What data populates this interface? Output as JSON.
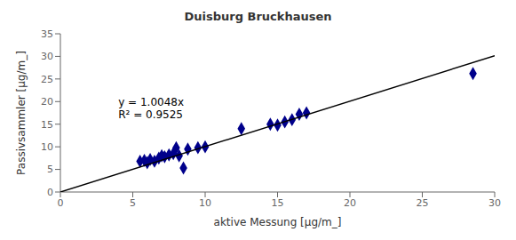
{
  "chart_data": {
    "type": "scatter",
    "title": "Duisburg Bruckhausen",
    "x_label": "aktive Messung [µg/m_]",
    "y_label": "Passivsammler  [µg/m_]",
    "xlim": [
      0,
      30
    ],
    "ylim": [
      0,
      35
    ],
    "xticks": [
      0,
      5,
      10,
      15,
      20,
      25,
      30
    ],
    "yticks": [
      0,
      5,
      10,
      15,
      20,
      25,
      30,
      35
    ],
    "grid": false,
    "series": [
      {
        "type": "scatter",
        "marker": "diamond",
        "color": "#00008B",
        "x": [
          5.5,
          5.8,
          6.0,
          6.2,
          6.5,
          6.8,
          7.0,
          7.2,
          7.5,
          7.8,
          8.0,
          8.2,
          8.5,
          8.8,
          9.5,
          10.0,
          12.5,
          14.5,
          15.0,
          15.5,
          16.0,
          16.5,
          17.0,
          28.5
        ],
        "values": [
          6.8,
          7.0,
          6.5,
          7.2,
          6.8,
          7.5,
          8.0,
          7.8,
          8.2,
          8.5,
          9.8,
          8.0,
          5.3,
          9.5,
          9.8,
          10.0,
          14.0,
          15.0,
          14.8,
          15.5,
          16.0,
          17.2,
          17.5,
          26.2
        ]
      },
      {
        "type": "line",
        "color": "#000000",
        "x": [
          0,
          30
        ],
        "values": [
          0,
          30.144
        ]
      }
    ],
    "annotations": [
      {
        "text": [
          "y = 1.0048x",
          "R² = 0.9525"
        ],
        "x": 4.0,
        "y": 21.5
      }
    ]
  }
}
